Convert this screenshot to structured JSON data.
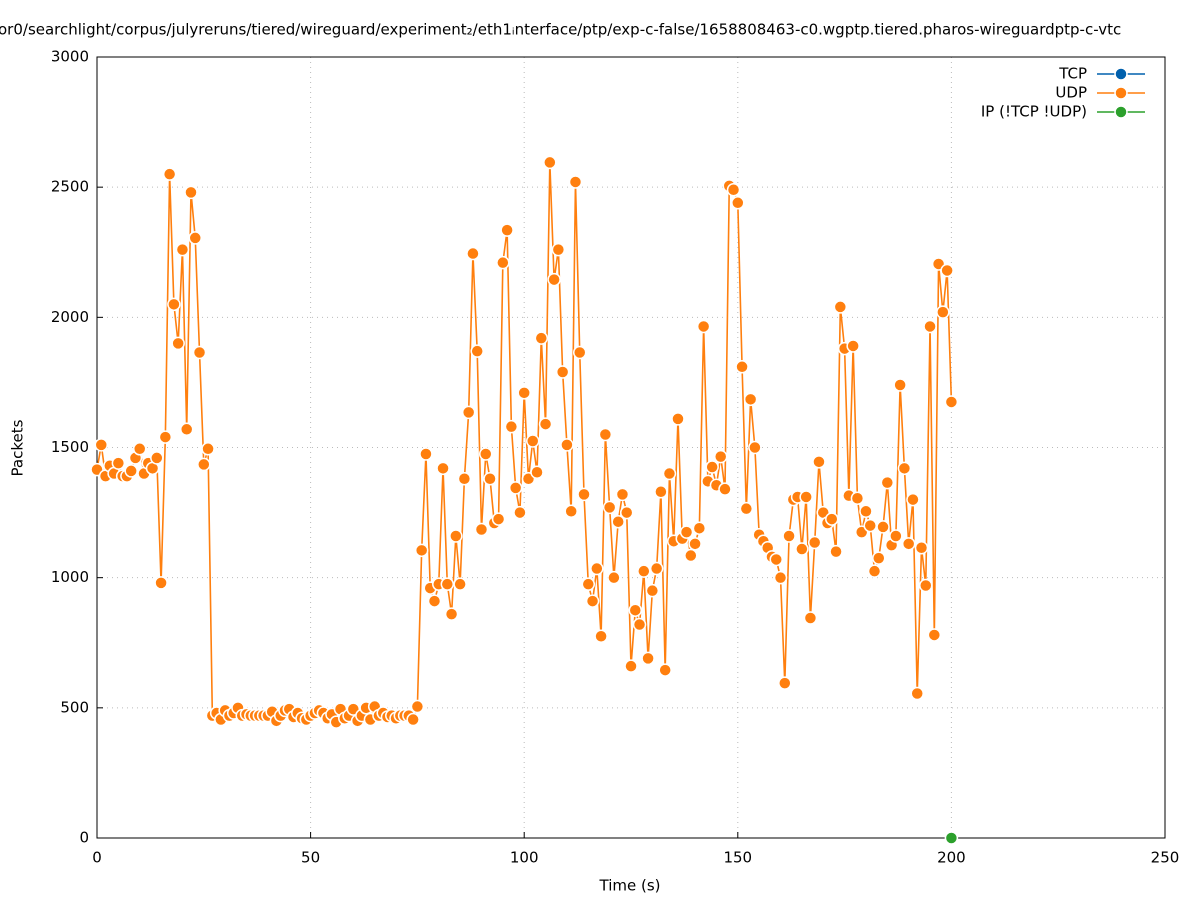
{
  "chart_data": {
    "type": "line",
    "title": "or0/searchlight/corpus/julyreruns/tiered/wireguard/experiment₂/eth1ᵢnterface/ptp/exp-c-false/1658808463-c0.wgptp.tiered.pharos-wireguardptp-c-vtc",
    "x_label": "Time (s)",
    "y_label": "Packets",
    "xlim": [
      0,
      250
    ],
    "xticks": [
      0,
      50,
      100,
      150,
      200,
      250
    ],
    "ylim": [
      0,
      3000
    ],
    "yticks": [
      0,
      500,
      1000,
      1500,
      2000,
      2500,
      3000
    ],
    "grid": true,
    "legend": "top-right",
    "series": [
      {
        "name": "TCP",
        "color": "#0060ad",
        "x": [],
        "values": []
      },
      {
        "name": "UDP",
        "color": "#ff7f0e",
        "x": [
          0,
          1,
          2,
          3,
          4,
          5,
          6,
          7,
          8,
          9,
          10,
          11,
          12,
          13,
          14,
          15,
          16,
          17,
          18,
          19,
          20,
          21,
          22,
          23,
          24,
          25,
          26,
          27,
          28,
          29,
          30,
          31,
          32,
          33,
          34,
          35,
          36,
          37,
          38,
          39,
          40,
          41,
          42,
          43,
          44,
          45,
          46,
          47,
          48,
          49,
          50,
          51,
          52,
          53,
          54,
          55,
          56,
          57,
          58,
          59,
          60,
          61,
          62,
          63,
          64,
          65,
          66,
          67,
          68,
          69,
          70,
          71,
          72,
          73,
          74,
          75,
          76,
          77,
          78,
          79,
          80,
          81,
          82,
          83,
          84,
          85,
          86,
          87,
          88,
          89,
          90,
          91,
          92,
          93,
          94,
          95,
          96,
          97,
          98,
          99,
          100,
          101,
          102,
          103,
          104,
          105,
          106,
          107,
          108,
          109,
          110,
          111,
          112,
          113,
          114,
          115,
          116,
          117,
          118,
          119,
          120,
          121,
          122,
          123,
          124,
          125,
          126,
          127,
          128,
          129,
          130,
          131,
          132,
          133,
          134,
          135,
          136,
          137,
          138,
          139,
          140,
          141,
          142,
          143,
          144,
          145,
          146,
          147,
          148,
          149,
          150,
          151,
          152,
          153,
          154,
          155,
          156,
          157,
          158,
          159,
          160,
          161,
          162,
          163,
          164,
          165,
          166,
          167,
          168,
          169,
          170,
          171,
          172,
          173,
          174,
          175,
          176,
          177,
          178,
          179,
          180,
          181,
          182,
          183,
          184,
          185,
          186,
          187,
          188,
          189,
          190,
          191,
          192,
          193,
          194,
          195,
          196,
          197,
          198,
          199,
          200
        ],
        "values": [
          1415,
          1510,
          1390,
          1430,
          1400,
          1440,
          1390,
          1390,
          1410,
          1460,
          1495,
          1400,
          1440,
          1420,
          1460,
          980,
          1540,
          2550,
          2050,
          1900,
          2260,
          1570,
          2480,
          2305,
          1865,
          1435,
          1495,
          470,
          480,
          455,
          490,
          470,
          480,
          500,
          470,
          475,
          470,
          470,
          470,
          470,
          470,
          485,
          450,
          470,
          490,
          495,
          465,
          480,
          460,
          455,
          470,
          480,
          490,
          480,
          460,
          475,
          445,
          495,
          460,
          470,
          495,
          450,
          470,
          500,
          455,
          505,
          470,
          480,
          465,
          470,
          460,
          470,
          470,
          470,
          455,
          505,
          1105,
          1475,
          960,
          910,
          975,
          1420,
          975,
          860,
          1160,
          975,
          1380,
          1635,
          2245,
          1870,
          1185,
          1475,
          1380,
          1210,
          1225,
          2210,
          2335,
          1580,
          1345,
          1250,
          1710,
          1380,
          1525,
          1405,
          1920,
          1590,
          2595,
          2145,
          2260,
          1790,
          1510,
          1255,
          2520,
          1865,
          1320,
          975,
          910,
          1035,
          775,
          1550,
          1270,
          1000,
          1215,
          1320,
          1250,
          660,
          875,
          820,
          1025,
          690,
          950,
          1035,
          1330,
          645,
          1400,
          1140,
          1610,
          1150,
          1175,
          1085,
          1130,
          1190,
          1965,
          1370,
          1425,
          1355,
          1465,
          1340,
          2505,
          2490,
          2440,
          1810,
          1265,
          1685,
          1500,
          1165,
          1140,
          1115,
          1080,
          1070,
          1000,
          595,
          1160,
          1300,
          1310,
          1110,
          1310,
          845,
          1135,
          1445,
          1250,
          1210,
          1225,
          1100,
          2040,
          1880,
          1315,
          1890,
          1305,
          1175,
          1255,
          1200,
          1025,
          1075,
          1195,
          1365,
          1125,
          1160,
          1740,
          1420,
          1130,
          1300,
          555,
          1115,
          970,
          1965,
          780,
          2205,
          2020,
          2180,
          1675
        ]
      },
      {
        "name": "IP (!TCP  !UDP)",
        "color": "#2ca02c",
        "x": [
          200
        ],
        "values": [
          0
        ]
      }
    ]
  }
}
